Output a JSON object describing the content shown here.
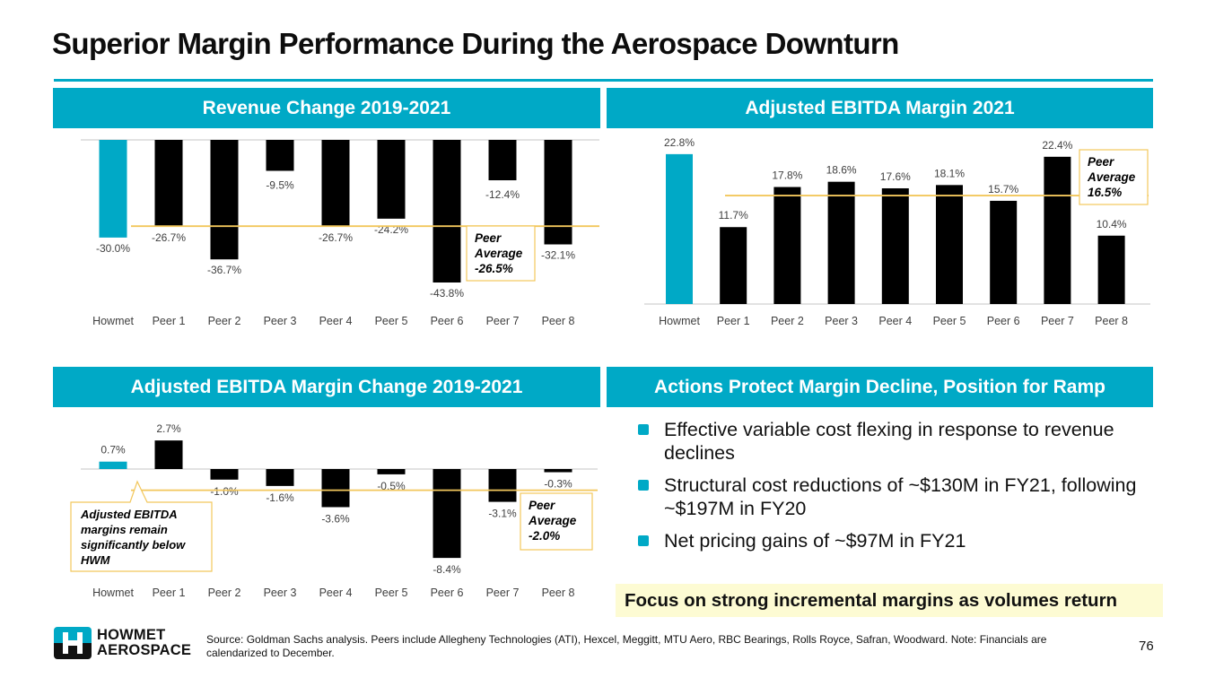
{
  "page": {
    "title": "Superior Margin Performance During the Aerospace Downturn",
    "page_number": "76",
    "colors": {
      "accent": "#00a9c6",
      "peer_bar": "#000000",
      "average_line": "#f2c75c",
      "highlight_bg": "#fdfbd3"
    }
  },
  "panels": {
    "revenue": {
      "header": "Revenue Change 2019-2021"
    },
    "ebitda_margin": {
      "header": "Adjusted EBITDA Margin 2021"
    },
    "ebitda_change": {
      "header": "Adjusted EBITDA Margin Change 2019-2021"
    },
    "actions": {
      "header": "Actions Protect Margin Decline, Position for Ramp",
      "bullets": [
        "Effective variable cost flexing in response to revenue declines",
        "Structural cost reductions of ~$130M in FY21, following ~$197M in FY20",
        "Net pricing gains of ~$97M in FY21"
      ],
      "focus": "Focus on strong incremental margins as volumes return"
    }
  },
  "chart_data": [
    {
      "type": "bar",
      "title": "Revenue Change 2019-2021",
      "categories": [
        "Howmet",
        "Peer 1",
        "Peer 2",
        "Peer 3",
        "Peer 4",
        "Peer 5",
        "Peer 6",
        "Peer 7",
        "Peer 8"
      ],
      "values": [
        -30.0,
        -26.7,
        -36.7,
        -9.5,
        -26.7,
        -24.2,
        -43.8,
        -12.4,
        -32.1
      ],
      "value_labels": [
        "-30.0%",
        "-26.7%",
        "-36.7%",
        "-9.5%",
        "-26.7%",
        "-24.2%",
        "-43.8%",
        "-12.4%",
        "-32.1%"
      ],
      "highlight_index": 0,
      "reference_line": {
        "value": -26.5,
        "label_lines": [
          "Peer",
          "Average",
          "-26.5%"
        ]
      },
      "xlabel": "",
      "ylabel": "",
      "ylim": [
        -48,
        0
      ],
      "grid": false,
      "legend": "none"
    },
    {
      "type": "bar",
      "title": "Adjusted EBITDA Margin 2021",
      "categories": [
        "Howmet",
        "Peer 1",
        "Peer 2",
        "Peer 3",
        "Peer 4",
        "Peer 5",
        "Peer 6",
        "Peer 7",
        "Peer 8"
      ],
      "values": [
        22.8,
        11.7,
        17.8,
        18.6,
        17.6,
        18.1,
        15.7,
        22.4,
        10.4
      ],
      "value_labels": [
        "22.8%",
        "11.7%",
        "17.8%",
        "18.6%",
        "17.6%",
        "18.1%",
        "15.7%",
        "22.4%",
        "10.4%"
      ],
      "highlight_index": 0,
      "reference_line": {
        "value": 16.5,
        "label_lines": [
          "Peer",
          "Average",
          "16.5%"
        ]
      },
      "xlabel": "",
      "ylabel": "",
      "ylim": [
        0,
        25
      ],
      "grid": false,
      "legend": "none"
    },
    {
      "type": "bar",
      "title": "Adjusted EBITDA Margin Change 2019-2021",
      "categories": [
        "Howmet",
        "Peer 1",
        "Peer 2",
        "Peer 3",
        "Peer 4",
        "Peer 5",
        "Peer 6",
        "Peer 7",
        "Peer 8"
      ],
      "values": [
        0.7,
        2.7,
        -1.0,
        -1.6,
        -3.6,
        -0.5,
        -8.4,
        -3.1,
        -0.3
      ],
      "value_labels": [
        "0.7%",
        "2.7%",
        "-1.0%",
        "-1.6%",
        "-3.6%",
        "-0.5%",
        "-8.4%",
        "-3.1%",
        "-0.3%"
      ],
      "highlight_index": 0,
      "reference_line": {
        "value": -2.0,
        "label_lines": [
          "Peer",
          "Average",
          "-2.0%"
        ]
      },
      "annotation": {
        "lines": [
          "Adjusted EBITDA",
          "margins remain",
          "significantly below",
          "HWM"
        ]
      },
      "xlabel": "",
      "ylabel": "",
      "ylim": [
        -9.5,
        4
      ],
      "grid": false,
      "legend": "none"
    }
  ],
  "logo": {
    "line1": "HOWMET",
    "line2": "AEROSPACE"
  },
  "footer": {
    "source": "Source: Goldman Sachs analysis. Peers include  Allegheny Technologies (ATI), Hexcel, Meggitt, MTU Aero, RBC Bearings, Rolls Royce, Safran, Woodward. Note: Financials are calendarized to December."
  }
}
